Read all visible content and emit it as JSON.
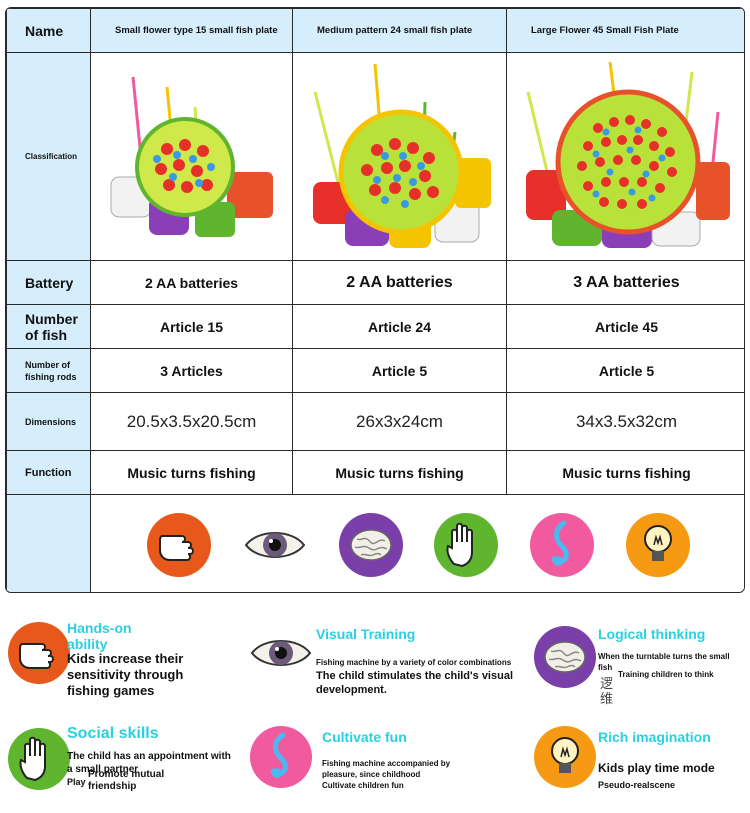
{
  "table": {
    "name_header": "Name",
    "columns": [
      "Small flower type 15 small fish plate",
      "Medium pattern 24 small fish plate",
      "Large Flower 45 Small Fish Plate"
    ],
    "row_labels": {
      "classification": "Classification",
      "battery": "Battery",
      "number_of_fish": "Number of fish",
      "rods": "Number of fishing rods",
      "dimensions": "Dimensions",
      "function": "Function"
    },
    "battery": [
      "2 AA batteries",
      "2 AA batteries",
      "3 AA batteries"
    ],
    "number_of_fish": [
      "Article 15",
      "Article 24",
      "Article 45"
    ],
    "rods": [
      "3 Articles",
      "Article 5",
      "Article 5"
    ],
    "dimensions": [
      "20.5x3.5x20.5cm",
      "26x3x24cm",
      "34x3.5x32cm"
    ],
    "function": [
      "Music turns fishing",
      "Music turns fishing",
      "Music turns fishing"
    ],
    "icons": [
      "fist-icon",
      "eye-icon",
      "brain-icon",
      "open-hand-icon",
      "music-note-icon",
      "lightbulb-icon"
    ]
  },
  "features": {
    "hands_on": {
      "title": "Hands-on ability",
      "body": "Kids increase their sensitivity through fishing games",
      "icon": "fist-icon"
    },
    "visual": {
      "title": "Visual Training",
      "small": "Fishing machine by a variety of color combinations",
      "body": "The child stimulates the child's visual development.",
      "icon": "eye-icon"
    },
    "logical": {
      "title": "Logical thinking",
      "small": "When the turntable turns the small fish",
      "small2": "Training children to think",
      "stray": "逻维",
      "icon": "brain-icon"
    },
    "social": {
      "title": "Social skills",
      "small": "The child has an appointment with a small partner",
      "small2": "Play",
      "body": "Promote mutual friendship",
      "icon": "open-hand-icon"
    },
    "fun": {
      "title": "Cultivate fun",
      "small": "Fishing machine accompanied by pleasure, since childhood",
      "small2": "Cultivate children fun",
      "icon": "music-note-icon"
    },
    "imagination": {
      "title": "Rich imagination",
      "body": "Kids play time mode",
      "small": "Pseudo-realscene",
      "icon": "lightbulb-icon"
    }
  },
  "colors": {
    "table_header_bg": "#d6eefb",
    "accent_title": "#2bd0e0",
    "fist_bg": "#e8581a",
    "brain_bg": "#7a3fa8",
    "hand_bg": "#5fb52e",
    "music_bg": "#f25aa0",
    "bulb_bg": "#f59a12"
  }
}
